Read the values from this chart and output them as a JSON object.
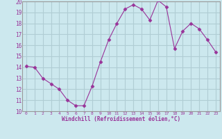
{
  "x": [
    0,
    1,
    2,
    3,
    4,
    5,
    6,
    7,
    8,
    9,
    10,
    11,
    12,
    13,
    14,
    15,
    16,
    17,
    18,
    19,
    20,
    21,
    22,
    23
  ],
  "y": [
    14.1,
    14.0,
    13.0,
    12.5,
    12.0,
    11.0,
    10.5,
    10.5,
    12.3,
    14.5,
    16.5,
    18.0,
    19.3,
    19.7,
    19.3,
    18.3,
    20.1,
    19.5,
    15.7,
    17.3,
    18.0,
    17.5,
    16.5,
    15.4
  ],
  "line_color": "#993399",
  "marker": "D",
  "marker_size": 2.5,
  "bg_color": "#cce8ee",
  "grid_color": "#b0cdd4",
  "spine_color": "#999999",
  "xlabel": "Windchill (Refroidissement éolien,°C)",
  "xlabel_color": "#993399",
  "tick_color": "#993399",
  "ylim": [
    10,
    20
  ],
  "xlim": [
    -0.5,
    23.5
  ],
  "yticks": [
    10,
    11,
    12,
    13,
    14,
    15,
    16,
    17,
    18,
    19,
    20
  ],
  "xticks": [
    0,
    1,
    2,
    3,
    4,
    5,
    6,
    7,
    8,
    9,
    10,
    11,
    12,
    13,
    14,
    15,
    16,
    17,
    18,
    19,
    20,
    21,
    22,
    23
  ]
}
